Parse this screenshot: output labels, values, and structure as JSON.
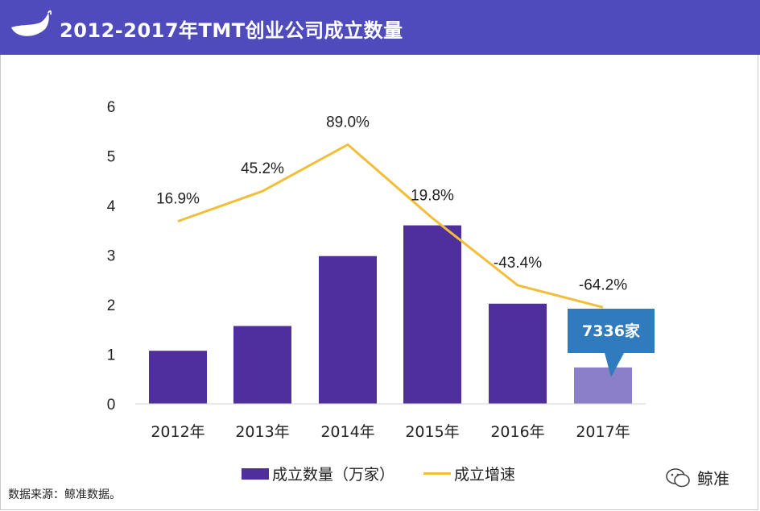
{
  "header": {
    "title": "2012-2017年TMT创业公司成立数量"
  },
  "chart_data": {
    "type": "bar",
    "categories": [
      "2012年",
      "2013年",
      "2014年",
      "2015年",
      "2016年",
      "2017年"
    ],
    "series": [
      {
        "name": "成立数量（万家）",
        "kind": "bar",
        "values": [
          1.07,
          1.57,
          2.98,
          3.6,
          2.02,
          0.7336
        ]
      },
      {
        "name": "成立增速",
        "kind": "line",
        "values": [
          16.9,
          45.2,
          89.0,
          19.8,
          -43.4,
          -64.2
        ],
        "labels": [
          "16.9%",
          "45.2%",
          "89.0%",
          "19.8%",
          "-43.4%",
          "-64.2%"
        ]
      }
    ],
    "yticks": [
      "0",
      "1",
      "2",
      "3",
      "4",
      "5",
      "6"
    ],
    "ylim": [
      0,
      6
    ],
    "line_ylim": [
      -155,
      125
    ],
    "callout": "7336家",
    "colors": {
      "bar": "#4e2f9c",
      "bar_last": "#8b7fca",
      "line": "#f2be3a",
      "callout": "#2f7bbd"
    }
  },
  "legend": {
    "bar_label": "成立数量（万家）",
    "line_label": "成立增速"
  },
  "footer": {
    "source": "数据来源：鲸准数据。",
    "watermark": "鲸准"
  }
}
